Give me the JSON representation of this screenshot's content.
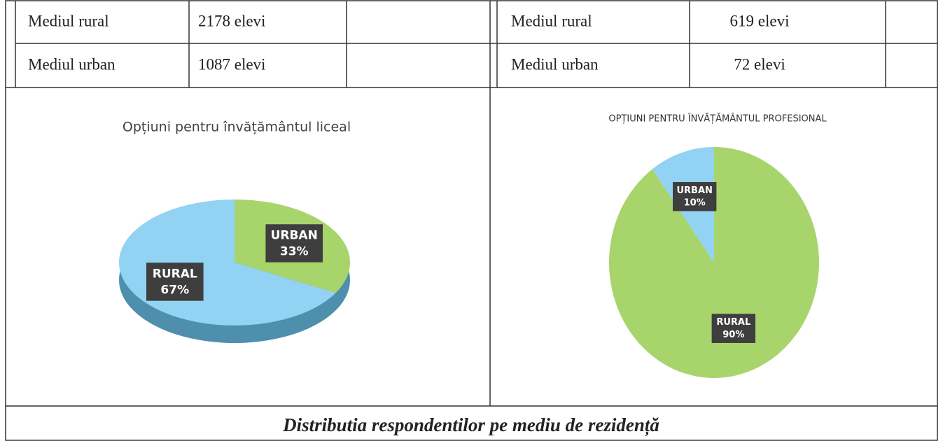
{
  "tables": [
    {
      "rows": [
        [
          "Mediul rural",
          "2178 elevi"
        ],
        [
          "Mediul urban",
          "1087 elevi"
        ]
      ]
    },
    {
      "rows": [
        [
          "Mediul rural",
          "619 elevi"
        ],
        [
          "Mediul urban",
          "72 elevi"
        ]
      ]
    }
  ],
  "chart_data": [
    {
      "type": "pie",
      "title": "Opțiuni pentru învățământul liceal",
      "categories": [
        "URBAN",
        "RURAL"
      ],
      "values": [
        33,
        67
      ],
      "value_labels": [
        "33%",
        "67%"
      ],
      "colors": [
        "#a8d46c",
        "#92d2f2"
      ]
    },
    {
      "type": "pie",
      "title": "OPȚIUNI PENTRU ÎNVĂȚĂMÂNTUL PROFESIONAL",
      "categories": [
        "RURAL",
        "URBAN"
      ],
      "values": [
        90,
        10
      ],
      "value_labels": [
        "90%",
        "10%"
      ],
      "colors": [
        "#a8d46c",
        "#92d2f2"
      ]
    }
  ],
  "caption": "Distributia respondentilor pe mediu de rezidență"
}
